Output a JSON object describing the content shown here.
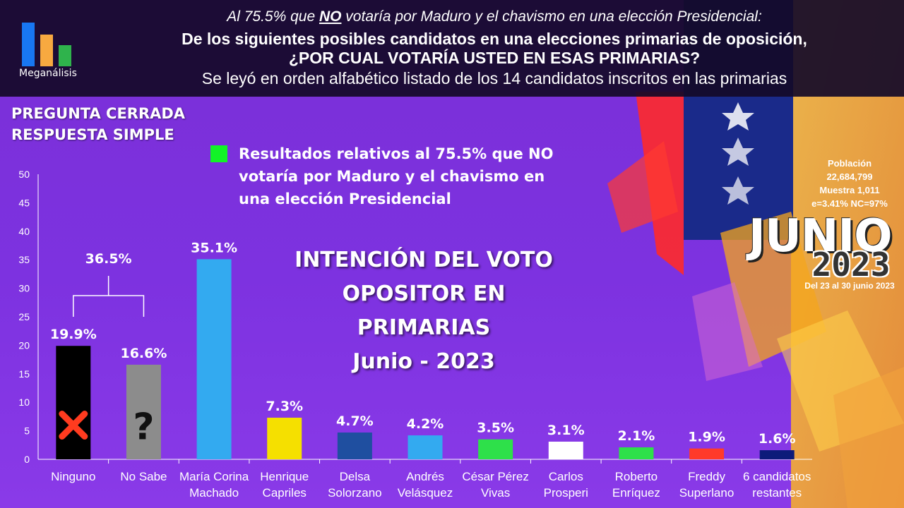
{
  "header": {
    "line1_prefix": "Al 75.5% que ",
    "line1_emph": "NO",
    "line1_suffix": " votaría por Maduro y el chavismo en una elección Presidencial:",
    "line2": "De los siguientes posibles candidatos en una elecciones primarias de oposición,",
    "line3": "¿POR CUAL VOTARÍA USTED EN ESAS PRIMARIAS?",
    "line4": "Se leyó en orden alfabético listado de los 14 candidatos inscritos en las primarias"
  },
  "brand": {
    "logo_text": "Meganálisis",
    "logo_colors": [
      "#1877f2",
      "#f7a940",
      "#2fb34c"
    ]
  },
  "question_type": {
    "line1": "PREGUNTA  CERRADA",
    "line2": "RESPUESTA SIMPLE"
  },
  "legend": {
    "swatch_color": "#12f227",
    "text": "Resultados relativos al 75.5% que NO votaría por Maduro y el chavismo en una elección Presidencial"
  },
  "main_title": {
    "line1": "INTENCIÓN DEL VOTO",
    "line2": "OPOSITOR EN PRIMARIAS",
    "line3": "Junio - 2023"
  },
  "survey_info": {
    "line1": "Población",
    "line2": "22,684,799",
    "line3": "Muestra 1,011",
    "line4": "e=3.41%  NC=97%"
  },
  "date_badge": {
    "month": "JUNIO",
    "year": "2023",
    "period": "Del 23 al 30 junio 2023"
  },
  "chart_data": {
    "type": "bar",
    "title": "",
    "xlabel": "",
    "ylabel": "",
    "ylim": [
      0,
      50
    ],
    "yticks": [
      "0",
      "5",
      "10",
      "15",
      "20",
      "25",
      "30",
      "35",
      "40",
      "45",
      "50"
    ],
    "categories": [
      [
        "Ninguno"
      ],
      [
        "No Sabe"
      ],
      [
        "María Corina",
        "Machado"
      ],
      [
        "Henrique",
        "Capriles"
      ],
      [
        "Delsa",
        "Solorzano"
      ],
      [
        "Andrés",
        "Velásquez"
      ],
      [
        "César Pérez",
        "Vivas"
      ],
      [
        "Carlos",
        "Prosperi"
      ],
      [
        "Roberto",
        "Enríquez"
      ],
      [
        "Freddy",
        "Superlano"
      ],
      [
        "6 candidatos",
        "restantes"
      ]
    ],
    "values": [
      19.9,
      16.6,
      35.1,
      7.3,
      4.7,
      4.2,
      3.5,
      3.1,
      2.1,
      1.9,
      1.6
    ],
    "value_labels": [
      "19.9%",
      "16.6%",
      "35.1%",
      "7.3%",
      "4.7%",
      "4.2%",
      "3.5%",
      "3.1%",
      "2.1%",
      "1.9%",
      "1.6%"
    ],
    "bar_colors": [
      "#000000",
      "#8c8c8c",
      "#33aaf0",
      "#f5e000",
      "#1f4fa0",
      "#33aaf0",
      "#2ee04a",
      "#ffffff",
      "#2ee04a",
      "#ff3a2a",
      "#0d1b7a"
    ],
    "bar_marks": [
      "x-mark",
      "question-mark",
      "",
      "",
      "",
      "",
      "",
      "",
      "",
      "",
      ""
    ],
    "group_bracket": {
      "label": "36.5%",
      "from": 0,
      "to": 1
    },
    "grid": false
  }
}
